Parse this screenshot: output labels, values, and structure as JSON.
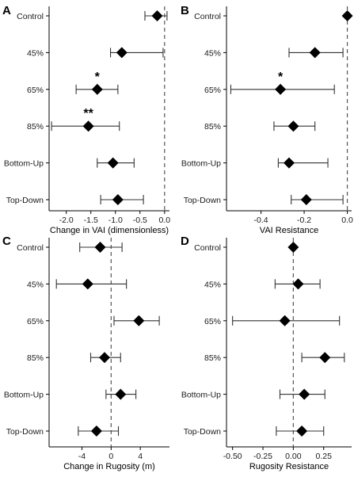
{
  "chart_data": [
    {
      "panel": "A",
      "type": "scatter",
      "categories": [
        "Control",
        "45%",
        "65%",
        "85%",
        "Bottom-Up",
        "Top-Down"
      ],
      "values": [
        -0.15,
        -0.87,
        -1.37,
        -1.55,
        -1.05,
        -0.95
      ],
      "ci_low": [
        -0.4,
        -1.1,
        -1.8,
        -2.3,
        -1.37,
        -1.3
      ],
      "ci_high": [
        0.05,
        -0.03,
        -0.95,
        -0.92,
        -0.62,
        -0.43
      ],
      "significance": [
        "",
        "",
        "*",
        "**",
        "",
        ""
      ],
      "xlim": [
        -2.35,
        0.1
      ],
      "xticks": [
        -2.0,
        -1.5,
        -1.0,
        -0.5,
        0.0
      ],
      "xtick_labels": [
        "-2.0",
        "-1.5",
        "-1.0",
        "-0.5",
        "0.0"
      ],
      "xlabel": "Change in VAI (dimensionless)",
      "reference_line": 0
    },
    {
      "panel": "B",
      "type": "scatter",
      "categories": [
        "Control",
        "45%",
        "65%",
        "85%",
        "Bottom-Up",
        "Top-Down"
      ],
      "values": [
        0.0,
        -0.15,
        -0.31,
        -0.25,
        -0.27,
        -0.19
      ],
      "ci_low": [
        0.0,
        -0.27,
        -0.54,
        -0.34,
        -0.32,
        -0.26
      ],
      "ci_high": [
        0.0,
        -0.02,
        -0.06,
        -0.15,
        -0.09,
        -0.02
      ],
      "significance": [
        "",
        "",
        "*",
        "",
        "",
        ""
      ],
      "xlim": [
        -0.56,
        0.02
      ],
      "xticks": [
        -0.4,
        -0.2,
        0.0
      ],
      "xtick_labels": [
        "-0.4",
        "-0.2",
        "0.0"
      ],
      "xlabel": "VAI Resistance",
      "reference_line": 0
    },
    {
      "panel": "C",
      "type": "scatter",
      "categories": [
        "Control",
        "45%",
        "65%",
        "85%",
        "Bottom-Up",
        "Top-Down"
      ],
      "values": [
        -1.5,
        -3.2,
        3.8,
        -0.9,
        1.3,
        -2.0
      ],
      "ci_low": [
        -4.3,
        -7.5,
        0.4,
        -2.8,
        -0.7,
        -4.5
      ],
      "ci_high": [
        1.5,
        2.1,
        6.6,
        1.3,
        3.4,
        1.0
      ],
      "significance": [
        "",
        "",
        "",
        "",
        "",
        ""
      ],
      "xlim": [
        -8.5,
        8.0
      ],
      "xticks": [
        -4,
        0,
        4
      ],
      "xtick_labels": [
        "-4",
        "0",
        "4"
      ],
      "xlabel": "Change in Rugosity (m)",
      "reference_line": 0
    },
    {
      "panel": "D",
      "type": "scatter",
      "categories": [
        "Control",
        "45%",
        "65%",
        "85%",
        "Bottom-Up",
        "Top-Down"
      ],
      "values": [
        0.0,
        0.04,
        -0.07,
        0.26,
        0.09,
        0.07
      ],
      "ci_low": [
        0.0,
        -0.15,
        -0.5,
        0.07,
        -0.11,
        -0.14
      ],
      "ci_high": [
        0.0,
        0.22,
        0.38,
        0.42,
        0.26,
        0.25
      ],
      "significance": [
        "",
        "",
        "",
        "",
        "",
        ""
      ],
      "xlim": [
        -0.55,
        0.48
      ],
      "xticks": [
        -0.5,
        -0.25,
        0.0,
        0.25
      ],
      "xtick_labels": [
        "-0.50",
        "-0.25",
        "0.00",
        "0.25"
      ],
      "xlabel": "Rugosity Resistance",
      "reference_line": 0
    }
  ],
  "colors": {
    "marker": "#000000",
    "error_bar": "#333333",
    "reference_line": "#555555",
    "axis": "#000000"
  }
}
